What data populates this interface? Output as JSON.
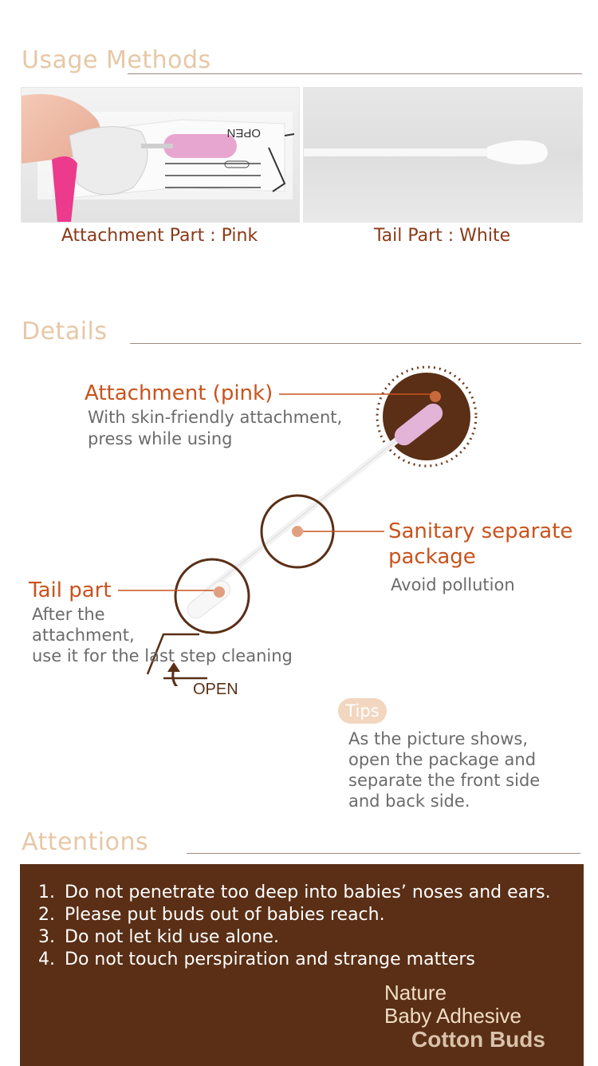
{
  "usage": {
    "title": "Usage Methods",
    "left_caption": "Attachment Part : Pink",
    "right_caption": "Tail Part : White",
    "open_label": "OPEN"
  },
  "details": {
    "title": "Details",
    "attachment_heading": "Attachment (pink)",
    "attachment_desc_1": "With skin-friendly attachment,",
    "attachment_desc_2": "press while using",
    "sanitary_heading_1": "Sanitary separate",
    "sanitary_heading_2": "package",
    "sanitary_desc": "Avoid pollution",
    "tail_heading": "Tail part",
    "tail_desc_1": "After the",
    "tail_desc_2": "attachment,",
    "tail_desc_3": "use it for the last step cleaning",
    "open_label": "OPEN",
    "tips_badge": "Tips",
    "tips_lines": [
      "As the picture shows,",
      "open the package and",
      "separate the front side",
      "and back side."
    ]
  },
  "attentions": {
    "title": "Attentions",
    "items": [
      {
        "num": "1.",
        "text": "Do not penetrate too deep into babies’ noses and ears."
      },
      {
        "num": "2.",
        "text": "Please put buds out of babies reach."
      },
      {
        "num": "3.",
        "text": "Do not let kid use alone."
      },
      {
        "num": "4.",
        "text": "Do not touch perspiration and strange matters"
      }
    ]
  },
  "brand": {
    "line1": "Nature",
    "line2": "Baby Adhesive",
    "line3": "Cotton Buds"
  },
  "colors": {
    "accent_orange": "#c8531e",
    "title_beige": "#e6c8a6",
    "brown_dark": "#5a2f16",
    "pink": "#e887b6"
  }
}
